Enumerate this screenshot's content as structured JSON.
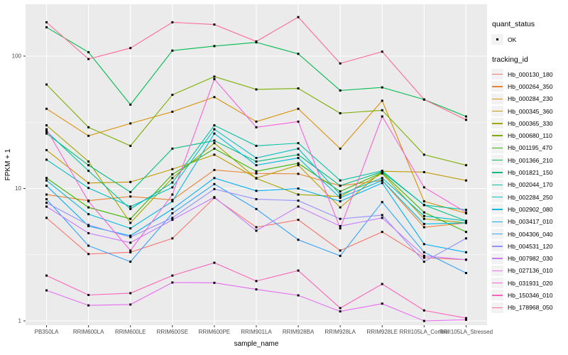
{
  "colors": {
    "panel_background": "#EBEBEB",
    "gridline": "#FFFFFF",
    "axis_text": "#4D4D4D",
    "axis_title": "#000000",
    "point": "#000000",
    "legend_key_background": "#F2F2F2",
    "page_background": "#FFFFFF"
  },
  "legend": {
    "quant_status_title": "quant_status",
    "quant_status_entries": [
      {
        "label": "OK",
        "shape": "black-point"
      }
    ],
    "tracking_id_title": "tracking_id"
  },
  "chart_data": {
    "type": "line",
    "title": "",
    "xlabel": "sample_name",
    "ylabel": "FPKM + 1",
    "y_scale": "log10",
    "y_major_ticks": [
      1,
      10,
      100
    ],
    "y_minor_gridlines": [
      3.1623,
      31.623
    ],
    "ylim_displayed": [
      1,
      246
    ],
    "grid": "white major+minor horizontal lines and major vertical lines on grey panel",
    "legend_position": "right",
    "point_shape": "small black square at every data vertex (quant_status = OK)",
    "categories": [
      "PB350LA",
      "RRIM600LA",
      "RRIM600LE",
      "RRIM600SE",
      "RRIM600PE",
      "RRIM901LA",
      "RRIM928BA",
      "RRIM928LA",
      "RRIM928LE",
      "RRII105LA_Control",
      "RRII105LA_Stressed"
    ],
    "series": [
      {
        "name": "Hb_000130_180",
        "color": "#F8766D",
        "values": [
          6.0,
          3.2,
          3.3,
          4.2,
          8.5,
          5.1,
          5.8,
          3.4,
          4.7,
          3.0,
          2.9
        ]
      },
      {
        "name": "Hb_000264_350",
        "color": "#EA8331",
        "values": [
          9.0,
          8.1,
          8.7,
          8.2,
          13.8,
          13.0,
          12.9,
          10.5,
          11.5,
          5.1,
          5.5
        ]
      },
      {
        "name": "Hb_000284_230",
        "color": "#D89000",
        "values": [
          40,
          25,
          31,
          38,
          49,
          32,
          40,
          20,
          46,
          8.0,
          6.5
        ]
      },
      {
        "name": "Hb_000345_360",
        "color": "#C09B00",
        "values": [
          19.5,
          11,
          11.2,
          14,
          18,
          12,
          15,
          7.2,
          13.5,
          13.3,
          11.5
        ]
      },
      {
        "name": "Hb_000365_330",
        "color": "#A3A500",
        "values": [
          30,
          16,
          5.5,
          12,
          22,
          11.9,
          9.0,
          8.7,
          13,
          5.9,
          5.5
        ]
      },
      {
        "name": "Hb_000680_110",
        "color": "#7CAE00",
        "values": [
          61,
          29,
          21,
          51,
          70,
          56,
          57,
          37,
          39,
          18,
          15
        ]
      },
      {
        "name": "Hb_001195_470",
        "color": "#39B600",
        "values": [
          12,
          7.2,
          5.9,
          12.8,
          20,
          13.5,
          15.5,
          9.5,
          13.2,
          6.6,
          4.7
        ]
      },
      {
        "name": "Hb_001366_210",
        "color": "#00BB4E",
        "values": [
          165,
          107,
          43,
          110,
          119,
          127,
          104,
          55,
          58,
          47,
          35
        ]
      },
      {
        "name": "Hb_001821_150",
        "color": "#00BF7D",
        "values": [
          26,
          15,
          9.4,
          20,
          23,
          16,
          18,
          10.5,
          13.4,
          7.5,
          5.7
        ]
      },
      {
        "name": "Hb_002044_170",
        "color": "#00C1A3",
        "values": [
          27,
          13.6,
          7.0,
          11.1,
          30,
          21,
          22,
          11.5,
          13.6,
          7.5,
          6.9
        ]
      },
      {
        "name": "Hb_002284_250",
        "color": "#00BFC4",
        "values": [
          16.5,
          10.1,
          7.3,
          10.2,
          28,
          17,
          20,
          9.0,
          12,
          6.2,
          5.7
        ]
      },
      {
        "name": "Hb_002902_080",
        "color": "#00BAE0",
        "values": [
          11.5,
          6.4,
          5.0,
          8.0,
          26,
          15,
          17,
          8.5,
          11.5,
          5.4,
          5.5
        ]
      },
      {
        "name": "Hb_003417_010",
        "color": "#00B0F6",
        "values": [
          10.5,
          5.2,
          4.4,
          7.0,
          12.0,
          9.6,
          10.0,
          8.0,
          11.0,
          3.8,
          3.3
        ]
      },
      {
        "name": "Hb_004306_040",
        "color": "#35A2FF",
        "values": [
          8.3,
          3.7,
          2.8,
          6.5,
          10.8,
          7.0,
          4.1,
          3.1,
          7.9,
          3.3,
          2.3
        ]
      },
      {
        "name": "Hb_004531_120",
        "color": "#9590FF",
        "values": [
          7.8,
          5.3,
          4.3,
          6.0,
          9.9,
          8.3,
          8.1,
          5.9,
          6.3,
          2.8,
          4.2
        ]
      },
      {
        "name": "Hb_007982_030",
        "color": "#C77CFF",
        "values": [
          7.3,
          4.6,
          3.9,
          5.8,
          8.6,
          4.8,
          7.3,
          5.2,
          6.0,
          3.1,
          2.9
        ]
      },
      {
        "name": "Hb_027136_010",
        "color": "#E76BF3",
        "values": [
          1.7,
          1.31,
          1.33,
          1.95,
          1.94,
          1.73,
          1.56,
          1.18,
          1.35,
          1.0,
          1.02
        ]
      },
      {
        "name": "Hb_031931_020",
        "color": "#FA62DB",
        "values": [
          28,
          8.0,
          3.4,
          9.0,
          67,
          29,
          32,
          5.0,
          35,
          10.2,
          6.6
        ]
      },
      {
        "name": "Hb_150346_010",
        "color": "#FF62BC",
        "values": [
          2.2,
          1.57,
          1.62,
          2.2,
          2.75,
          2.0,
          2.4,
          1.25,
          1.9,
          1.2,
          1.05
        ]
      },
      {
        "name": "Hb_178968_050",
        "color": "#FF6A98",
        "values": [
          180,
          95,
          115,
          180,
          173,
          129,
          197,
          88,
          108,
          47,
          33
        ]
      }
    ]
  }
}
